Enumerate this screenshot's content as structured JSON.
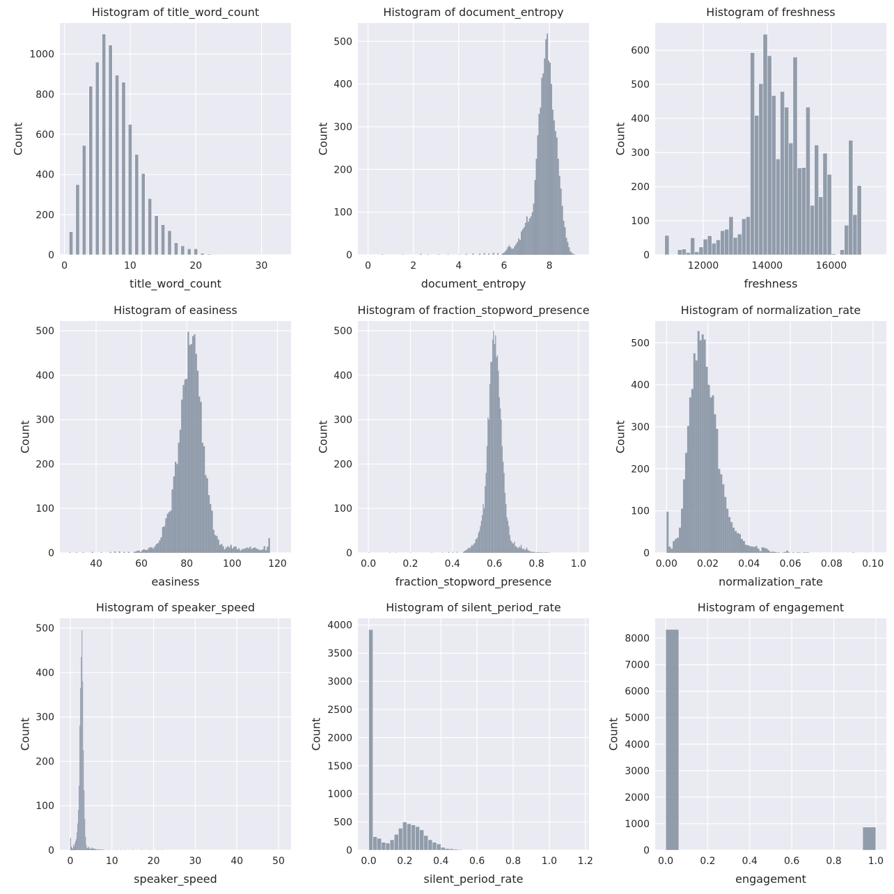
{
  "figure": {
    "background": "#ffffff",
    "axes_background": "#eaeaf2",
    "grid_color": "#ffffff",
    "bar_color": "#8c98a6",
    "y_label": "Count"
  },
  "chart_data": [
    {
      "type": "bar",
      "title": "Histogram of title_word_count",
      "xlabel": "title_word_count",
      "ylabel": "Count",
      "xlim": [
        -0.7,
        34.5
      ],
      "ylim": [
        0,
        1155
      ],
      "xticks": [
        0,
        10,
        20,
        30
      ],
      "yticks": [
        0,
        200,
        400,
        600,
        800,
        1000
      ],
      "bin_width": 0.55,
      "x": [
        1,
        2,
        3,
        4,
        5,
        6,
        7,
        8,
        9,
        10,
        11,
        12,
        13,
        14,
        15,
        16,
        17,
        18,
        19,
        20,
        21,
        22,
        23,
        24,
        25,
        26,
        27
      ],
      "values": [
        115,
        350,
        545,
        840,
        960,
        1100,
        1045,
        895,
        860,
        650,
        500,
        405,
        280,
        195,
        150,
        120,
        60,
        45,
        30,
        30,
        8,
        4,
        2,
        2,
        1,
        1,
        1
      ]
    },
    {
      "type": "bar",
      "title": "Histogram of document_entropy",
      "xlabel": "document_entropy",
      "ylabel": "Count",
      "xlim": [
        -0.45,
        9.75
      ],
      "ylim": [
        0,
        543
      ],
      "xticks": [
        0,
        2,
        4,
        6,
        8
      ],
      "yticks": [
        0,
        100,
        200,
        300,
        400,
        500
      ],
      "bin_width": 0.06,
      "x_start": 5.9,
      "values": [
        3,
        5,
        8,
        12,
        18,
        22,
        18,
        14,
        15,
        20,
        25,
        30,
        38,
        35,
        55,
        60,
        65,
        75,
        90,
        78,
        85,
        90,
        100,
        120,
        175,
        225,
        280,
        330,
        345,
        415,
        425,
        460,
        505,
        518,
        455,
        450,
        400,
        340,
        315,
        290,
        275,
        225,
        185,
        155,
        115,
        80,
        65,
        40,
        30,
        18,
        8,
        5,
        2,
        1
      ],
      "sparse_low": [
        [
          0.6,
          1
        ],
        [
          1.5,
          1
        ],
        [
          2.3,
          2
        ],
        [
          2.6,
          1
        ],
        [
          3.1,
          1
        ],
        [
          3.5,
          1
        ],
        [
          4.0,
          1
        ],
        [
          4.3,
          2
        ],
        [
          4.6,
          3
        ],
        [
          4.9,
          3
        ],
        [
          5.1,
          4
        ],
        [
          5.3,
          3
        ],
        [
          5.5,
          5
        ],
        [
          5.7,
          4
        ]
      ]
    },
    {
      "type": "bar",
      "title": "Histogram of freshness",
      "xlabel": "freshness",
      "ylabel": "Count",
      "xlim": [
        10500,
        17720
      ],
      "ylim": [
        0,
        680
      ],
      "xticks": [
        12000,
        14000,
        16000
      ],
      "xtick_labels": [
        "12000",
        "14000",
        "16000"
      ],
      "yticks": [
        0,
        100,
        200,
        300,
        400,
        500,
        600
      ],
      "bin_width": 133.5,
      "x_start": 10800,
      "values": [
        57,
        0,
        0,
        15,
        17,
        7,
        50,
        9,
        23,
        46,
        56,
        34,
        44,
        71,
        75,
        112,
        51,
        61,
        106,
        112,
        593,
        409,
        502,
        647,
        584,
        467,
        281,
        479,
        433,
        328,
        580,
        255,
        256,
        433,
        145,
        322,
        170,
        298,
        236,
        3,
        0,
        15,
        87,
        336,
        118,
        203
      ]
    },
    {
      "type": "bar",
      "title": "Histogram of easiness",
      "xlabel": "easiness",
      "ylabel": "Count",
      "xlim": [
        24,
        126
      ],
      "ylim": [
        0,
        522
      ],
      "xticks": [
        40,
        60,
        80,
        100,
        120
      ],
      "yticks": [
        0,
        100,
        200,
        300,
        400,
        500
      ],
      "bin_width": 0.7,
      "x_start": 56.5,
      "values": [
        2,
        3,
        5,
        5,
        2,
        6,
        8,
        7,
        6,
        10,
        13,
        12,
        10,
        15,
        20,
        22,
        28,
        35,
        58,
        60,
        78,
        88,
        92,
        95,
        143,
        172,
        205,
        200,
        248,
        277,
        345,
        378,
        390,
        392,
        498,
        468,
        470,
        488,
        492,
        448,
        410,
        352,
        340,
        248,
        240,
        175,
        168,
        130,
        110,
        95,
        52,
        40,
        38,
        30,
        18,
        20,
        15,
        8,
        12,
        15,
        12,
        18,
        10,
        14,
        14,
        8,
        10,
        5,
        8,
        9,
        10,
        12,
        10,
        14,
        9,
        11,
        12,
        10,
        8,
        7,
        6,
        8,
        15,
        6,
        14,
        33
      ],
      "sparse_low": [
        [
          28,
          1
        ],
        [
          31,
          1
        ],
        [
          34,
          1
        ],
        [
          38,
          2
        ],
        [
          42,
          1
        ],
        [
          46,
          2
        ],
        [
          48,
          3
        ],
        [
          50,
          3
        ],
        [
          52,
          2
        ],
        [
          54,
          2
        ]
      ]
    },
    {
      "type": "bar",
      "title": "Histogram of fraction_stopword_presence",
      "xlabel": "fraction_stopword_presence",
      "ylabel": "Count",
      "xlim": [
        -0.05,
        1.05
      ],
      "ylim": [
        0,
        522
      ],
      "xticks": [
        0.0,
        0.2,
        0.4,
        0.6,
        0.8,
        1.0
      ],
      "xtick_labels": [
        "0.0",
        "0.2",
        "0.4",
        "0.6",
        "0.8",
        "1.0"
      ],
      "yticks": [
        0,
        100,
        200,
        300,
        400,
        500
      ],
      "bin_width": 0.0045,
      "x_start": 0.45,
      "values": [
        2,
        4,
        5,
        6,
        8,
        10,
        12,
        10,
        14,
        18,
        16,
        20,
        22,
        30,
        32,
        35,
        45,
        50,
        60,
        72,
        85,
        110,
        100,
        150,
        180,
        240,
        305,
        300,
        380,
        430,
        430,
        480,
        500,
        470,
        490,
        440,
        445,
        410,
        350,
        325,
        300,
        240,
        205,
        180,
        135,
        110,
        80,
        72,
        60,
        40,
        28,
        25,
        22,
        20,
        25,
        15,
        14,
        12,
        10,
        14,
        12,
        18,
        10,
        8,
        10,
        6,
        8,
        12,
        7,
        5,
        4,
        3,
        3,
        2,
        2,
        2,
        1,
        1,
        1,
        2,
        1,
        1,
        1,
        1,
        1,
        0,
        1,
        1,
        1,
        1,
        0,
        1
      ],
      "sparse_low": [
        [
          0.0,
          1
        ],
        [
          0.1,
          1
        ],
        [
          0.13,
          1
        ],
        [
          0.2,
          1
        ],
        [
          0.3,
          1
        ],
        [
          0.35,
          1
        ],
        [
          0.38,
          2
        ],
        [
          0.4,
          2
        ],
        [
          0.42,
          2
        ]
      ]
    },
    {
      "type": "bar",
      "title": "Histogram of normalization_rate",
      "xlabel": "normalization_rate",
      "ylabel": "Count",
      "xlim": [
        -0.0055,
        0.1065
      ],
      "ylim": [
        0,
        552
      ],
      "xticks": [
        0.0,
        0.02,
        0.04,
        0.06,
        0.08,
        0.1
      ],
      "xtick_labels": [
        "0.00",
        "0.02",
        "0.04",
        "0.06",
        "0.08",
        "0.10"
      ],
      "yticks": [
        0,
        100,
        200,
        300,
        400,
        500
      ],
      "bin_width": 0.001,
      "x_start": 0.0,
      "values": [
        98,
        15,
        10,
        28,
        33,
        36,
        60,
        105,
        175,
        238,
        302,
        370,
        390,
        475,
        458,
        528,
        506,
        520,
        508,
        443,
        400,
        370,
        375,
        330,
        295,
        200,
        187,
        163,
        133,
        105,
        85,
        73,
        60,
        52,
        47,
        45,
        33,
        28,
        19,
        18,
        16,
        15,
        14,
        16,
        10,
        4,
        13,
        12,
        10,
        6,
        2,
        3,
        2,
        1,
        1,
        0,
        1,
        2,
        5,
        1,
        0,
        1,
        0,
        1,
        1,
        0,
        1,
        1,
        1,
        0,
        0,
        0,
        0,
        0,
        0,
        0,
        0,
        0,
        0,
        0,
        0,
        0,
        0,
        0,
        0,
        0,
        0,
        0,
        0,
        0,
        1
      ]
    },
    {
      "type": "bar",
      "title": "Histogram of speaker_speed",
      "xlabel": "speaker_speed",
      "ylabel": "Count",
      "xlim": [
        -2.5,
        53
      ],
      "ylim": [
        0,
        522
      ],
      "xticks": [
        0,
        10,
        20,
        30,
        40,
        50
      ],
      "yticks": [
        0,
        100,
        200,
        300,
        400,
        500
      ],
      "bin_width": 0.17,
      "x_start": 0.0,
      "values": [
        28,
        8,
        5,
        3,
        12,
        8,
        15,
        20,
        25,
        40,
        60,
        90,
        145,
        280,
        365,
        435,
        495,
        380,
        225,
        135,
        70,
        30,
        12,
        5,
        4,
        8,
        6,
        3,
        4,
        2,
        6,
        5,
        3,
        4,
        2,
        3,
        2,
        1,
        2,
        1,
        1,
        2,
        1,
        1,
        1,
        1,
        1,
        1
      ],
      "sparse_low": [
        [
          9,
          1
        ],
        [
          10,
          1
        ],
        [
          11,
          1
        ],
        [
          12,
          1
        ],
        [
          13,
          1
        ],
        [
          15,
          1
        ],
        [
          17,
          1
        ],
        [
          19,
          1
        ],
        [
          21,
          1
        ],
        [
          22,
          1
        ]
      ]
    },
    {
      "type": "bar",
      "title": "Histogram of silent_period_rate",
      "xlabel": "silent_period_rate",
      "ylabel": "Count",
      "xlim": [
        -0.06,
        1.22
      ],
      "ylim": [
        0,
        4120
      ],
      "xticks": [
        0.0,
        0.2,
        0.4,
        0.6,
        0.8,
        1.0,
        1.2
      ],
      "xtick_labels": [
        "0.0",
        "0.2",
        "0.4",
        "0.6",
        "0.8",
        "1.0",
        "1.2"
      ],
      "yticks": [
        0,
        500,
        1000,
        1500,
        2000,
        2500,
        3000,
        3500,
        4000
      ],
      "bin_width": 0.0235,
      "x_start": 0.0,
      "values": [
        3920,
        240,
        210,
        140,
        125,
        185,
        280,
        390,
        500,
        470,
        450,
        420,
        360,
        260,
        185,
        140,
        110,
        50,
        30,
        25,
        18,
        12,
        6,
        4,
        2,
        2
      ]
    },
    {
      "type": "bar",
      "title": "Histogram of engagement",
      "xlabel": "engagement",
      "ylabel": "Count",
      "xlim": [
        -0.05,
        1.05
      ],
      "ylim": [
        0,
        8750
      ],
      "xticks": [
        0.0,
        0.2,
        0.4,
        0.6,
        0.8,
        1.0
      ],
      "xtick_labels": [
        "0.0",
        "0.2",
        "0.4",
        "0.6",
        "0.8",
        "1.0"
      ],
      "yticks": [
        0,
        1000,
        2000,
        3000,
        4000,
        5000,
        6000,
        7000,
        8000
      ],
      "bin_width": 0.0625,
      "x": [
        0.0,
        0.9375
      ],
      "values": [
        8330,
        870
      ]
    }
  ]
}
